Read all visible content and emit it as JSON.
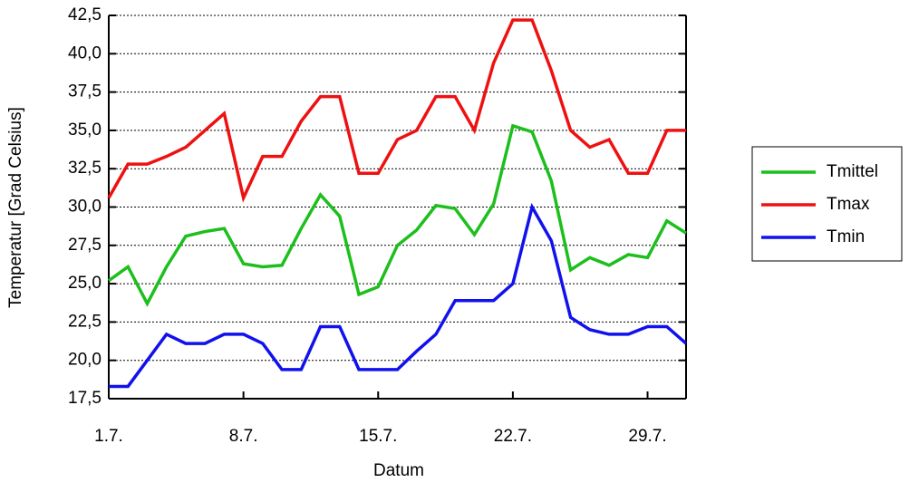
{
  "chart_data": {
    "type": "line",
    "y_label": "Temperatur [Grad Celsius]",
    "x_label": "Datum",
    "x": [
      1,
      2,
      3,
      4,
      5,
      6,
      7,
      8,
      9,
      10,
      11,
      12,
      13,
      14,
      15,
      16,
      17,
      18,
      19,
      20,
      21,
      22,
      23,
      24,
      25,
      26,
      27,
      28,
      29,
      30,
      31
    ],
    "xlim": [
      1,
      31
    ],
    "xticks": [
      {
        "value": 1,
        "label": "1.7."
      },
      {
        "value": 8,
        "label": "8.7."
      },
      {
        "value": 15,
        "label": "15.7."
      },
      {
        "value": 22,
        "label": "22.7."
      },
      {
        "value": 29,
        "label": "29.7."
      }
    ],
    "ylim": [
      17.5,
      42.5
    ],
    "yticks": [
      {
        "value": 17.5,
        "label": "17,5"
      },
      {
        "value": 20,
        "label": "20,0"
      },
      {
        "value": 22.5,
        "label": "22,5"
      },
      {
        "value": 25,
        "label": "25,0"
      },
      {
        "value": 27.5,
        "label": "27,5"
      },
      {
        "value": 30,
        "label": "30,0"
      },
      {
        "value": 32.5,
        "label": "32,5"
      },
      {
        "value": 35,
        "label": "35,0"
      },
      {
        "value": 37.5,
        "label": "37,5"
      },
      {
        "value": 40,
        "label": "40,0"
      },
      {
        "value": 42.5,
        "label": "42,5"
      }
    ],
    "grid": true,
    "legend": "right",
    "series": [
      {
        "name": "Tmittel",
        "color": "#1cbf1c",
        "values": [
          25.2,
          26.1,
          23.7,
          26.1,
          28.1,
          28.4,
          28.6,
          26.3,
          26.1,
          26.2,
          28.6,
          30.8,
          29.4,
          24.3,
          24.8,
          27.5,
          28.5,
          30.1,
          29.9,
          28.2,
          30.2,
          35.3,
          34.9,
          31.7,
          25.9,
          26.7,
          26.2,
          26.9,
          26.7,
          29.1,
          28.3
        ]
      },
      {
        "name": "Tmax",
        "color": "#ee1111",
        "values": [
          30.6,
          32.8,
          32.8,
          33.3,
          33.9,
          35.0,
          36.1,
          30.6,
          33.3,
          33.3,
          35.6,
          37.2,
          37.2,
          32.2,
          32.2,
          34.4,
          35.0,
          37.2,
          37.2,
          35.0,
          39.4,
          42.2,
          42.2,
          38.9,
          35.0,
          33.9,
          34.4,
          32.2,
          32.2,
          35.0,
          35.0
        ]
      },
      {
        "name": "Tmin",
        "color": "#1111ee",
        "values": [
          18.3,
          18.3,
          20.0,
          21.7,
          21.1,
          21.1,
          21.7,
          21.7,
          21.1,
          19.4,
          19.4,
          22.2,
          22.2,
          19.4,
          19.4,
          19.4,
          20.6,
          21.7,
          23.9,
          23.9,
          23.9,
          25.0,
          30.0,
          27.8,
          22.8,
          22.0,
          21.7,
          21.7,
          22.2,
          22.2,
          21.1
        ]
      }
    ]
  }
}
